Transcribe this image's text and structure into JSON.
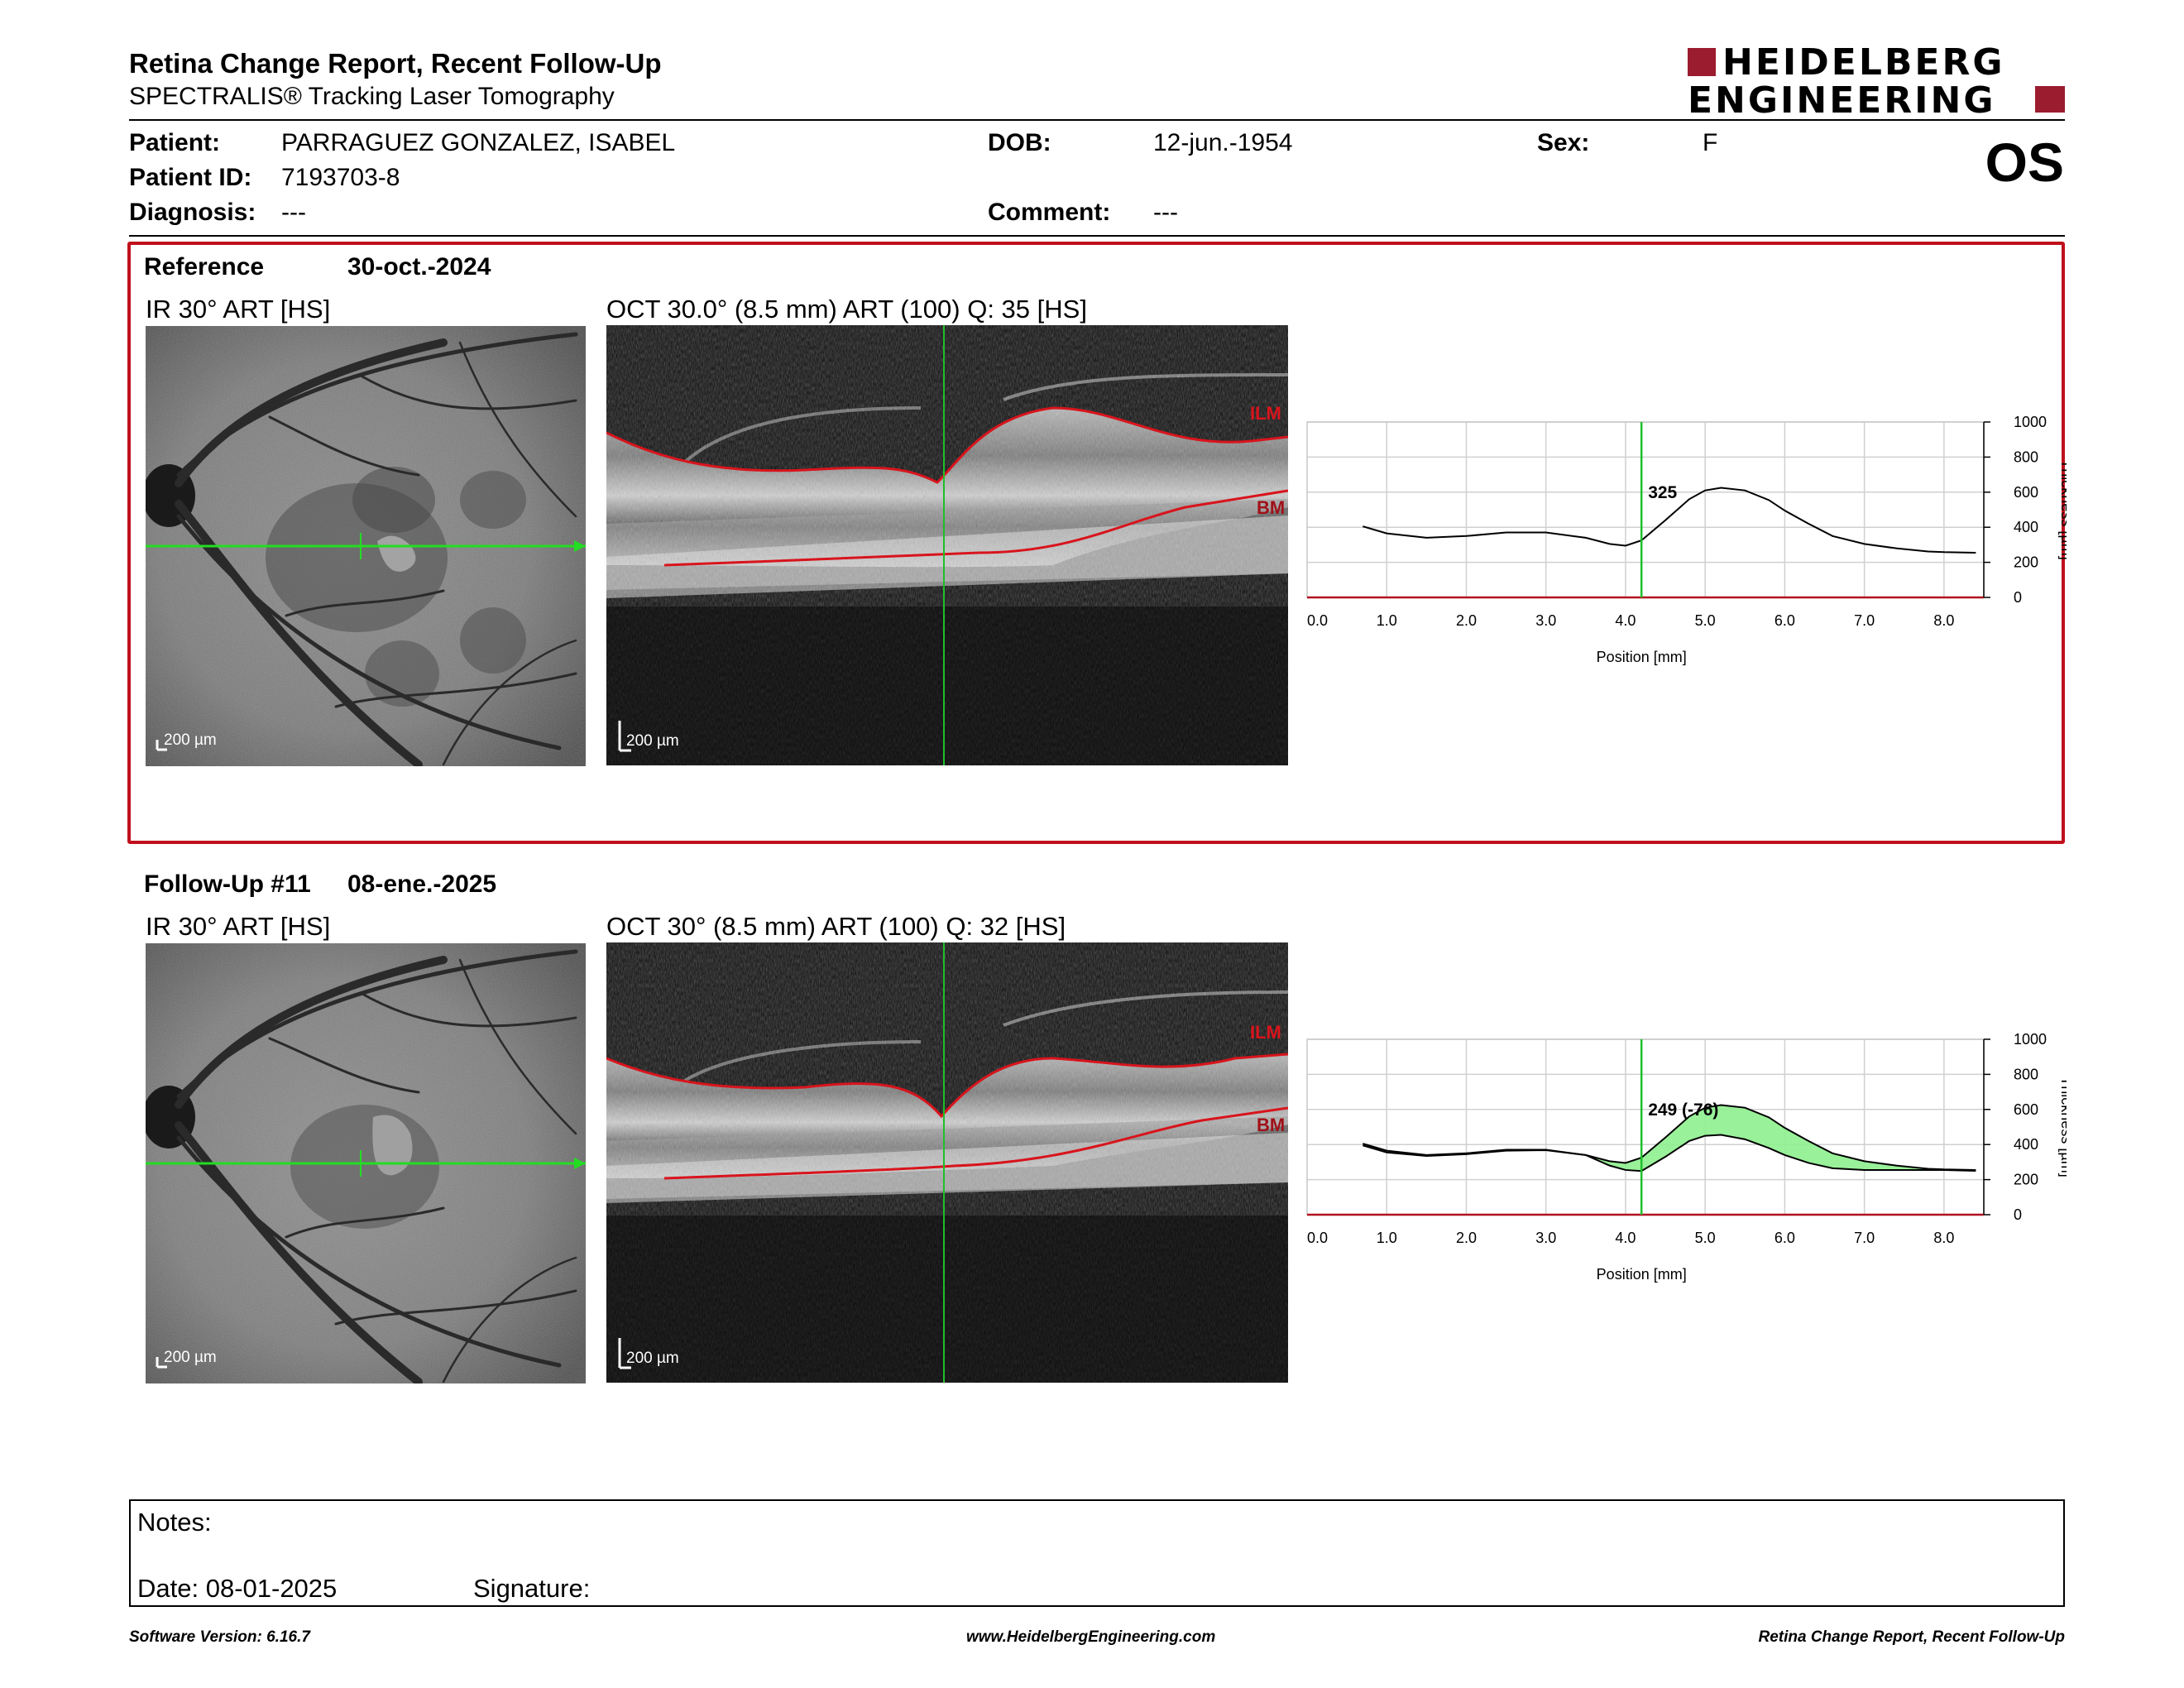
{
  "header": {
    "title": "Retina Change Report, Recent Follow-Up",
    "subtitle": "SPECTRALIS® Tracking Laser Tomography",
    "logo_line1": "HEIDELBERG",
    "logo_line2": "ENGINEERING",
    "eye": "OS"
  },
  "patient": {
    "name_label": "Patient:",
    "name": "PARRAGUEZ GONZALEZ, ISABEL",
    "id_label": "Patient ID:",
    "id": "7193703-8",
    "diagnosis_label": "Diagnosis:",
    "diagnosis": "---",
    "dob_label": "DOB:",
    "dob": "12-jun.-1954",
    "comment_label": "Comment:",
    "comment": "---",
    "sex_label": "Sex:",
    "sex": "F"
  },
  "reference": {
    "label": "Reference",
    "date": "30-oct.-2024",
    "ir_title": "IR 30° ART [HS]",
    "oct_title": "OCT 30.0° (8.5 mm) ART (100) Q: 35 [HS]",
    "scale_bar": "200 µm",
    "ilm_label": "ILM",
    "bm_label": "BM"
  },
  "followup": {
    "label": "Follow-Up #11",
    "date": "08-ene.-2025",
    "ir_title": "IR 30° ART [HS]",
    "oct_title": "OCT 30° (8.5 mm) ART (100) Q: 32 [HS]",
    "scale_bar": "200 µm",
    "ilm_label": "ILM",
    "bm_label": "BM"
  },
  "chart_data": [
    {
      "type": "line",
      "xlabel": "Position [mm]",
      "ylabel": "Thickness [µm]",
      "xlim": [
        0.0,
        8.5
      ],
      "ylim": [
        0,
        1000
      ],
      "x_ticks": [
        "0.0",
        "1.0",
        "2.0",
        "3.0",
        "4.0",
        "5.0",
        "6.0",
        "7.0",
        "8.0"
      ],
      "y_ticks": [
        "0",
        "200",
        "400",
        "600",
        "800",
        "1000"
      ],
      "grid": true,
      "cursor_x": 4.2,
      "cursor_label": "325",
      "series": [
        {
          "x": [
            0.7,
            1.0,
            1.5,
            2.0,
            2.5,
            3.0,
            3.5,
            3.8,
            4.0,
            4.2,
            4.5,
            4.8,
            5.0,
            5.2,
            5.5,
            5.8,
            6.0,
            6.3,
            6.6,
            7.0,
            7.4,
            7.8,
            8.0,
            8.4
          ],
          "y": [
            405,
            365,
            340,
            350,
            370,
            370,
            340,
            305,
            295,
            325,
            440,
            560,
            610,
            625,
            610,
            555,
            495,
            420,
            350,
            305,
            280,
            262,
            258,
            255
          ]
        }
      ]
    },
    {
      "type": "line",
      "xlabel": "Position [mm]",
      "ylabel": "Thickness [µm]",
      "xlim": [
        0.0,
        8.5
      ],
      "ylim": [
        0,
        1000
      ],
      "x_ticks": [
        "0.0",
        "1.0",
        "2.0",
        "3.0",
        "4.0",
        "5.0",
        "6.0",
        "7.0",
        "8.0"
      ],
      "y_ticks": [
        "0",
        "200",
        "400",
        "600",
        "800",
        "1000"
      ],
      "grid": true,
      "cursor_x": 4.2,
      "cursor_label": "249 (-76)",
      "series": [
        {
          "x": [
            0.7,
            1.0,
            1.5,
            2.0,
            2.5,
            3.0,
            3.5,
            3.8,
            4.0,
            4.2,
            4.5,
            4.8,
            5.0,
            5.2,
            5.5,
            5.8,
            6.0,
            6.3,
            6.6,
            7.0,
            7.4,
            7.8,
            8.0,
            8.4
          ],
          "y": [
            405,
            365,
            340,
            350,
            370,
            370,
            340,
            305,
            295,
            325,
            440,
            560,
            610,
            625,
            610,
            555,
            495,
            420,
            350,
            305,
            280,
            262,
            258,
            255
          ]
        },
        {
          "x": [
            0.7,
            1.0,
            1.5,
            2.0,
            2.5,
            3.0,
            3.5,
            3.8,
            4.0,
            4.2,
            4.5,
            4.8,
            5.0,
            5.2,
            5.5,
            5.8,
            6.0,
            6.3,
            6.6,
            7.0,
            7.4,
            7.8,
            8.0,
            8.4
          ],
          "y": [
            395,
            355,
            335,
            345,
            365,
            368,
            340,
            280,
            255,
            249,
            330,
            420,
            450,
            455,
            430,
            380,
            340,
            295,
            265,
            255,
            255,
            255,
            255,
            250
          ]
        }
      ]
    }
  ],
  "notes": {
    "notes_label": "Notes:",
    "date_label": "Date: 08-01-2025",
    "signature_label": "Signature:"
  },
  "footer": {
    "software": "Software Version: 6.16.7",
    "website": "www.HeidelbergEngineering.com",
    "report_name": "Retina Change Report, Recent Follow-Up"
  },
  "colors": {
    "frame_red": "#c0101c",
    "logo_red": "#9b1c2e",
    "cursor_green": "#1fbf2a",
    "fill_green": "#8ef08e",
    "segment_red": "#d8141c"
  }
}
